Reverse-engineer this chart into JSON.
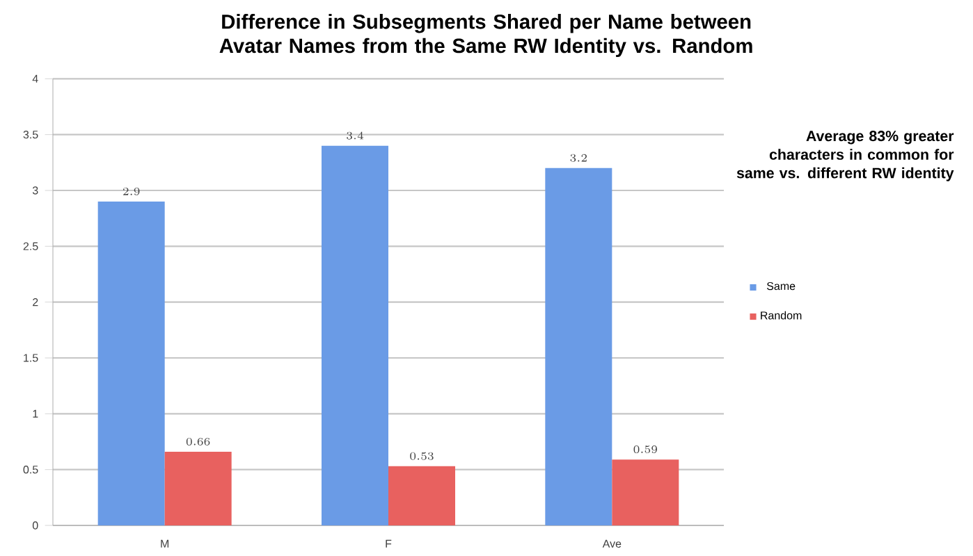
{
  "chart_data": {
    "type": "bar",
    "title": "Difference in Subsegments Shared per Name between Avatar Names from the Same RW Identity vs. Random",
    "categories": [
      "M",
      "F",
      "Ave"
    ],
    "series": [
      {
        "name": "Same",
        "color": "#6a9be6",
        "values": [
          2.9,
          3.4,
          3.2
        ]
      },
      {
        "name": "Random",
        "color": "#e8615f",
        "values": [
          0.66,
          0.53,
          0.59
        ]
      }
    ],
    "ylim": [
      0,
      4
    ],
    "yticks": [
      0,
      0.5,
      1,
      1.5,
      2,
      2.5,
      3,
      3.5,
      4
    ],
    "grid": "y",
    "legend": "right",
    "data_labels": true,
    "annotations": [
      "Average 83% greater characters in common for same vs. different RW identity"
    ]
  }
}
